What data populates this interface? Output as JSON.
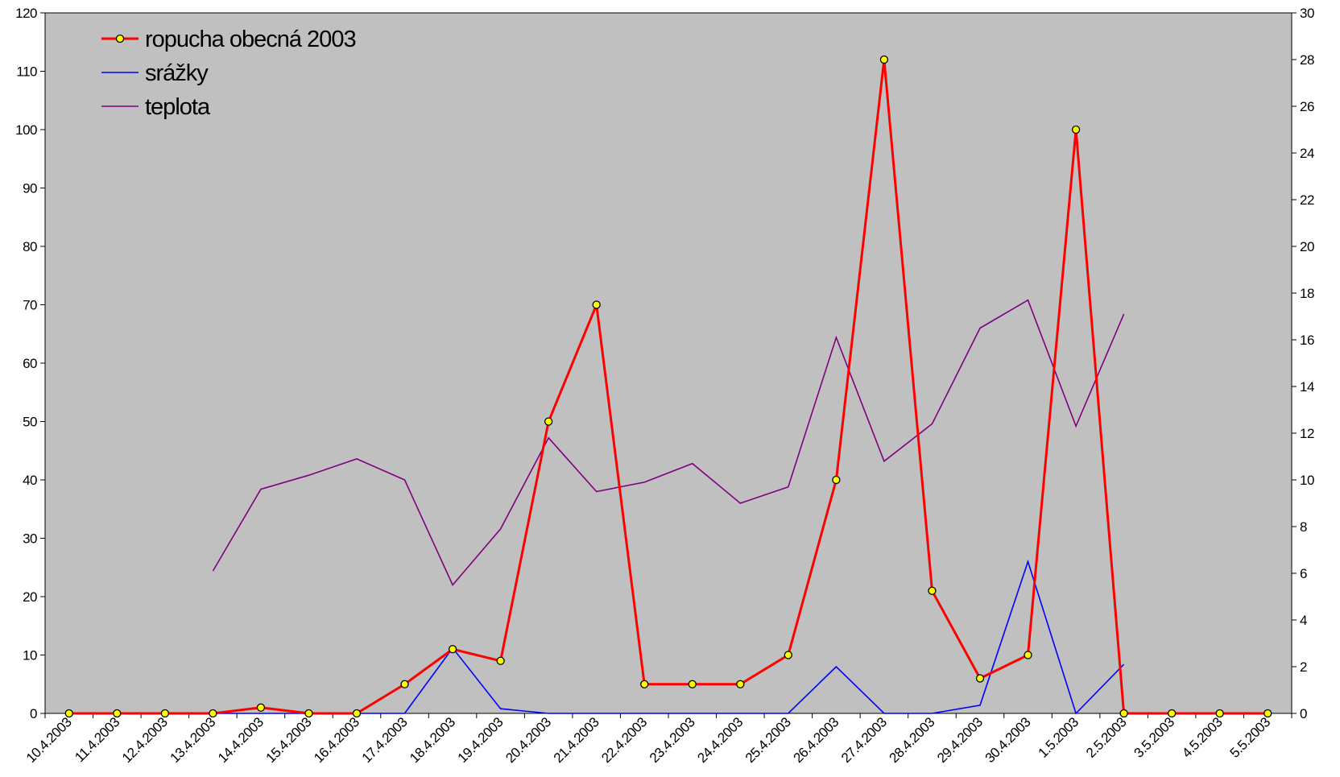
{
  "chart_data": {
    "type": "line",
    "x": [
      "10.4.2003",
      "11.4.2003",
      "12.4.2003",
      "13.4.2003",
      "14.4.2003",
      "15.4.2003",
      "16.4.2003",
      "17.4.2003",
      "18.4.2003",
      "19.4.2003",
      "20.4.2003",
      "21.4.2003",
      "22.4.2003",
      "23.4.2003",
      "24.4.2003",
      "25.4.2003",
      "26.4.2003",
      "27.4.2003",
      "28.4.2003",
      "29.4.2003",
      "30.4.2003",
      "1.5.2003",
      "2.5.2003",
      "3.5.2003",
      "4.5.2003",
      "5.5.2003"
    ],
    "series": [
      {
        "name": "ropucha obecná 2003",
        "axis": "left",
        "color": "#ff0000",
        "marker": "circle-yellow",
        "values": [
          0,
          0,
          0,
          0,
          1,
          0,
          0,
          5,
          11,
          9,
          50,
          70,
          5,
          5,
          5,
          10,
          40,
          112,
          21,
          6,
          10,
          100,
          0,
          0,
          0,
          0
        ]
      },
      {
        "name": "srážky",
        "axis": "right",
        "color": "#0000ff",
        "values": [
          null,
          null,
          null,
          0,
          0,
          0,
          0,
          0,
          2.8,
          0.2,
          0,
          0,
          0,
          0,
          0,
          0,
          2,
          0,
          0,
          0.35,
          6.5,
          0,
          2.1,
          null,
          null,
          null
        ]
      },
      {
        "name": "teplota",
        "axis": "right",
        "color": "#800080",
        "values": [
          null,
          null,
          null,
          6.1,
          9.6,
          10.2,
          10.9,
          10,
          5.5,
          7.9,
          11.8,
          9.5,
          9.9,
          10.7,
          9,
          9.7,
          16.1,
          10.8,
          12.4,
          16.5,
          17.7,
          12.3,
          17.1,
          null,
          null,
          null
        ]
      }
    ],
    "ylim": [
      0,
      120
    ],
    "y2lim": [
      0,
      30
    ],
    "yticks": [
      "0",
      "10",
      "20",
      "30",
      "40",
      "50",
      "60",
      "70",
      "80",
      "90",
      "100",
      "110",
      "120"
    ],
    "y2ticks": [
      "0",
      "2",
      "4",
      "6",
      "8",
      "10",
      "12",
      "14",
      "16",
      "18",
      "20",
      "22",
      "24",
      "26",
      "28",
      "30"
    ],
    "grid": false,
    "plot_background": "#c0c0c0",
    "legend_position": "top-left",
    "title": "",
    "xlabel": "",
    "ylabel": ""
  }
}
